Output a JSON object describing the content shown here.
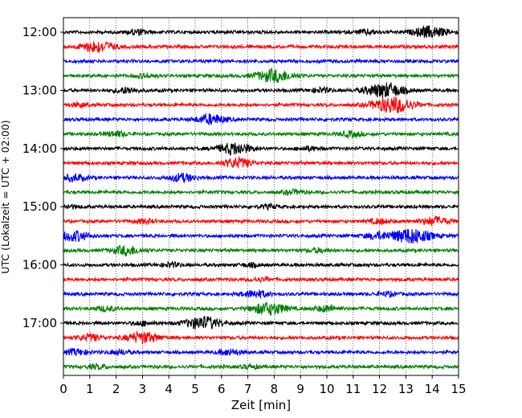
{
  "chart_data": {
    "type": "line",
    "title": "",
    "xlabel": "Zeit  [min]",
    "ylabel": "UTC (Lokalzeit = UTC + 02:00)",
    "xlim": [
      0,
      15
    ],
    "x_ticks": [
      "0",
      "1",
      "2",
      "3",
      "4",
      "5",
      "6",
      "7",
      "8",
      "9",
      "10",
      "11",
      "12",
      "13",
      "14",
      "15"
    ],
    "y_ticks": [
      "12:00",
      "13:00",
      "14:00",
      "15:00",
      "16:00",
      "17:00"
    ],
    "grid": "vertical dotted lines at each minute",
    "trace_minutes": 15,
    "colors": [
      "#000000",
      "#ff0000",
      "#0000ff",
      "#008000"
    ],
    "traces": [
      {
        "start": "12:00",
        "color": "#000000",
        "events": [
          [
            2.8,
            0.45
          ],
          [
            11.5,
            0.4
          ],
          [
            13.9,
            1.0
          ]
        ]
      },
      {
        "start": "12:15",
        "color": "#ff0000",
        "events": [
          [
            1.3,
            1.0
          ]
        ]
      },
      {
        "start": "12:30",
        "color": "#0000ff",
        "events": []
      },
      {
        "start": "12:45",
        "color": "#008000",
        "events": [
          [
            8.0,
            1.15
          ],
          [
            3.1,
            0.35
          ]
        ]
      },
      {
        "start": "13:00",
        "color": "#000000",
        "events": [
          [
            2.4,
            0.5
          ],
          [
            12.2,
            1.3
          ],
          [
            9.8,
            0.4
          ]
        ]
      },
      {
        "start": "13:15",
        "color": "#ff0000",
        "events": [
          [
            12.5,
            1.45
          ],
          [
            0.6,
            0.3
          ]
        ]
      },
      {
        "start": "13:30",
        "color": "#0000ff",
        "events": [
          [
            5.6,
            0.85
          ]
        ]
      },
      {
        "start": "13:45",
        "color": "#008000",
        "events": [
          [
            2.0,
            0.45
          ],
          [
            10.9,
            0.45
          ]
        ]
      },
      {
        "start": "14:00",
        "color": "#000000",
        "events": [
          [
            6.5,
            1.05
          ],
          [
            9.3,
            0.35
          ]
        ]
      },
      {
        "start": "14:15",
        "color": "#ff0000",
        "events": [
          [
            6.6,
            0.85
          ]
        ]
      },
      {
        "start": "14:30",
        "color": "#0000ff",
        "events": [
          [
            0.4,
            0.55
          ],
          [
            4.5,
            0.7
          ]
        ]
      },
      {
        "start": "14:45",
        "color": "#008000",
        "events": [
          [
            8.7,
            0.35
          ]
        ]
      },
      {
        "start": "15:00",
        "color": "#000000",
        "events": [
          [
            0.2,
            0.3
          ],
          [
            7.8,
            0.3
          ]
        ]
      },
      {
        "start": "15:15",
        "color": "#ff0000",
        "events": [
          [
            14.1,
            0.75
          ],
          [
            3.1,
            0.35
          ],
          [
            12.0,
            0.4
          ]
        ]
      },
      {
        "start": "15:30",
        "color": "#0000ff",
        "events": [
          [
            0.4,
            0.9
          ],
          [
            13.2,
            1.35
          ],
          [
            11.9,
            0.55
          ]
        ]
      },
      {
        "start": "15:45",
        "color": "#008000",
        "events": [
          [
            2.4,
            0.8
          ],
          [
            9.7,
            0.35
          ]
        ]
      },
      {
        "start": "16:00",
        "color": "#000000",
        "events": [
          [
            4.1,
            0.35
          ],
          [
            7.1,
            0.3
          ]
        ]
      },
      {
        "start": "16:15",
        "color": "#ff0000",
        "events": [
          [
            7.5,
            0.3
          ]
        ]
      },
      {
        "start": "16:30",
        "color": "#0000ff",
        "events": [
          [
            7.3,
            0.65
          ],
          [
            12.3,
            0.35
          ]
        ]
      },
      {
        "start": "16:45",
        "color": "#008000",
        "events": [
          [
            7.8,
            1.1
          ],
          [
            10.0,
            0.55
          ],
          [
            1.6,
            0.4
          ]
        ]
      },
      {
        "start": "17:00",
        "color": "#000000",
        "events": [
          [
            5.3,
            1.15
          ],
          [
            3.0,
            0.35
          ]
        ]
      },
      {
        "start": "17:15",
        "color": "#ff0000",
        "events": [
          [
            3.0,
            1.0
          ],
          [
            1.0,
            0.55
          ]
        ]
      },
      {
        "start": "17:30",
        "color": "#0000ff",
        "events": [
          [
            0.5,
            0.5
          ],
          [
            6.3,
            0.5
          ],
          [
            2.1,
            0.4
          ]
        ]
      },
      {
        "start": "17:45",
        "color": "#008000",
        "events": [
          [
            1.3,
            0.35
          ],
          [
            7.1,
            0.3
          ]
        ]
      }
    ]
  }
}
